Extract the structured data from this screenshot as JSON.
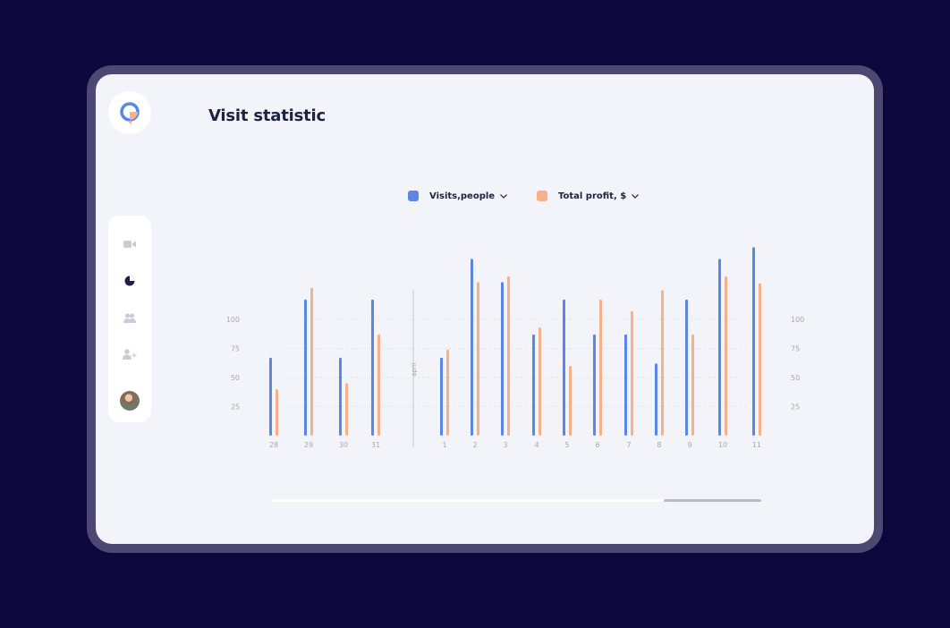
{
  "title": "Visit statistic",
  "nav": [
    {
      "icon": "video-camera-icon",
      "active": false
    },
    {
      "icon": "pie-chart-icon",
      "active": true
    },
    {
      "icon": "users-icon",
      "active": false
    },
    {
      "icon": "add-user-icon",
      "active": false
    }
  ],
  "legend": [
    {
      "label": "Visits,people",
      "color": "#5b85e6"
    },
    {
      "label": "Total profit, $",
      "color": "#f7b189"
    }
  ],
  "colors": {
    "visits": "#5b85e6",
    "profit": "#f7b189",
    "tick": "#a3a7b7",
    "grid": "#dfe1ea"
  },
  "chart_data": {
    "type": "bar",
    "categories": [
      "28",
      "29",
      "30",
      "31",
      "1",
      "2",
      "3",
      "4",
      "5",
      "6",
      "7",
      "8",
      "9",
      "10",
      "11"
    ],
    "divider_label": "april",
    "series": [
      {
        "name": "Visits,people",
        "values": [
          67,
          117,
          67,
          117,
          67,
          152,
          132,
          87,
          117,
          87,
          87,
          62,
          117,
          152,
          162
        ]
      },
      {
        "name": "Total profit, $",
        "values": [
          40,
          127,
          45,
          87,
          74,
          132,
          137,
          93,
          60,
          117,
          107,
          125,
          87,
          137,
          131
        ]
      }
    ],
    "yticks": [
      25,
      50,
      75,
      100
    ],
    "ylim": [
      0,
      180
    ]
  }
}
